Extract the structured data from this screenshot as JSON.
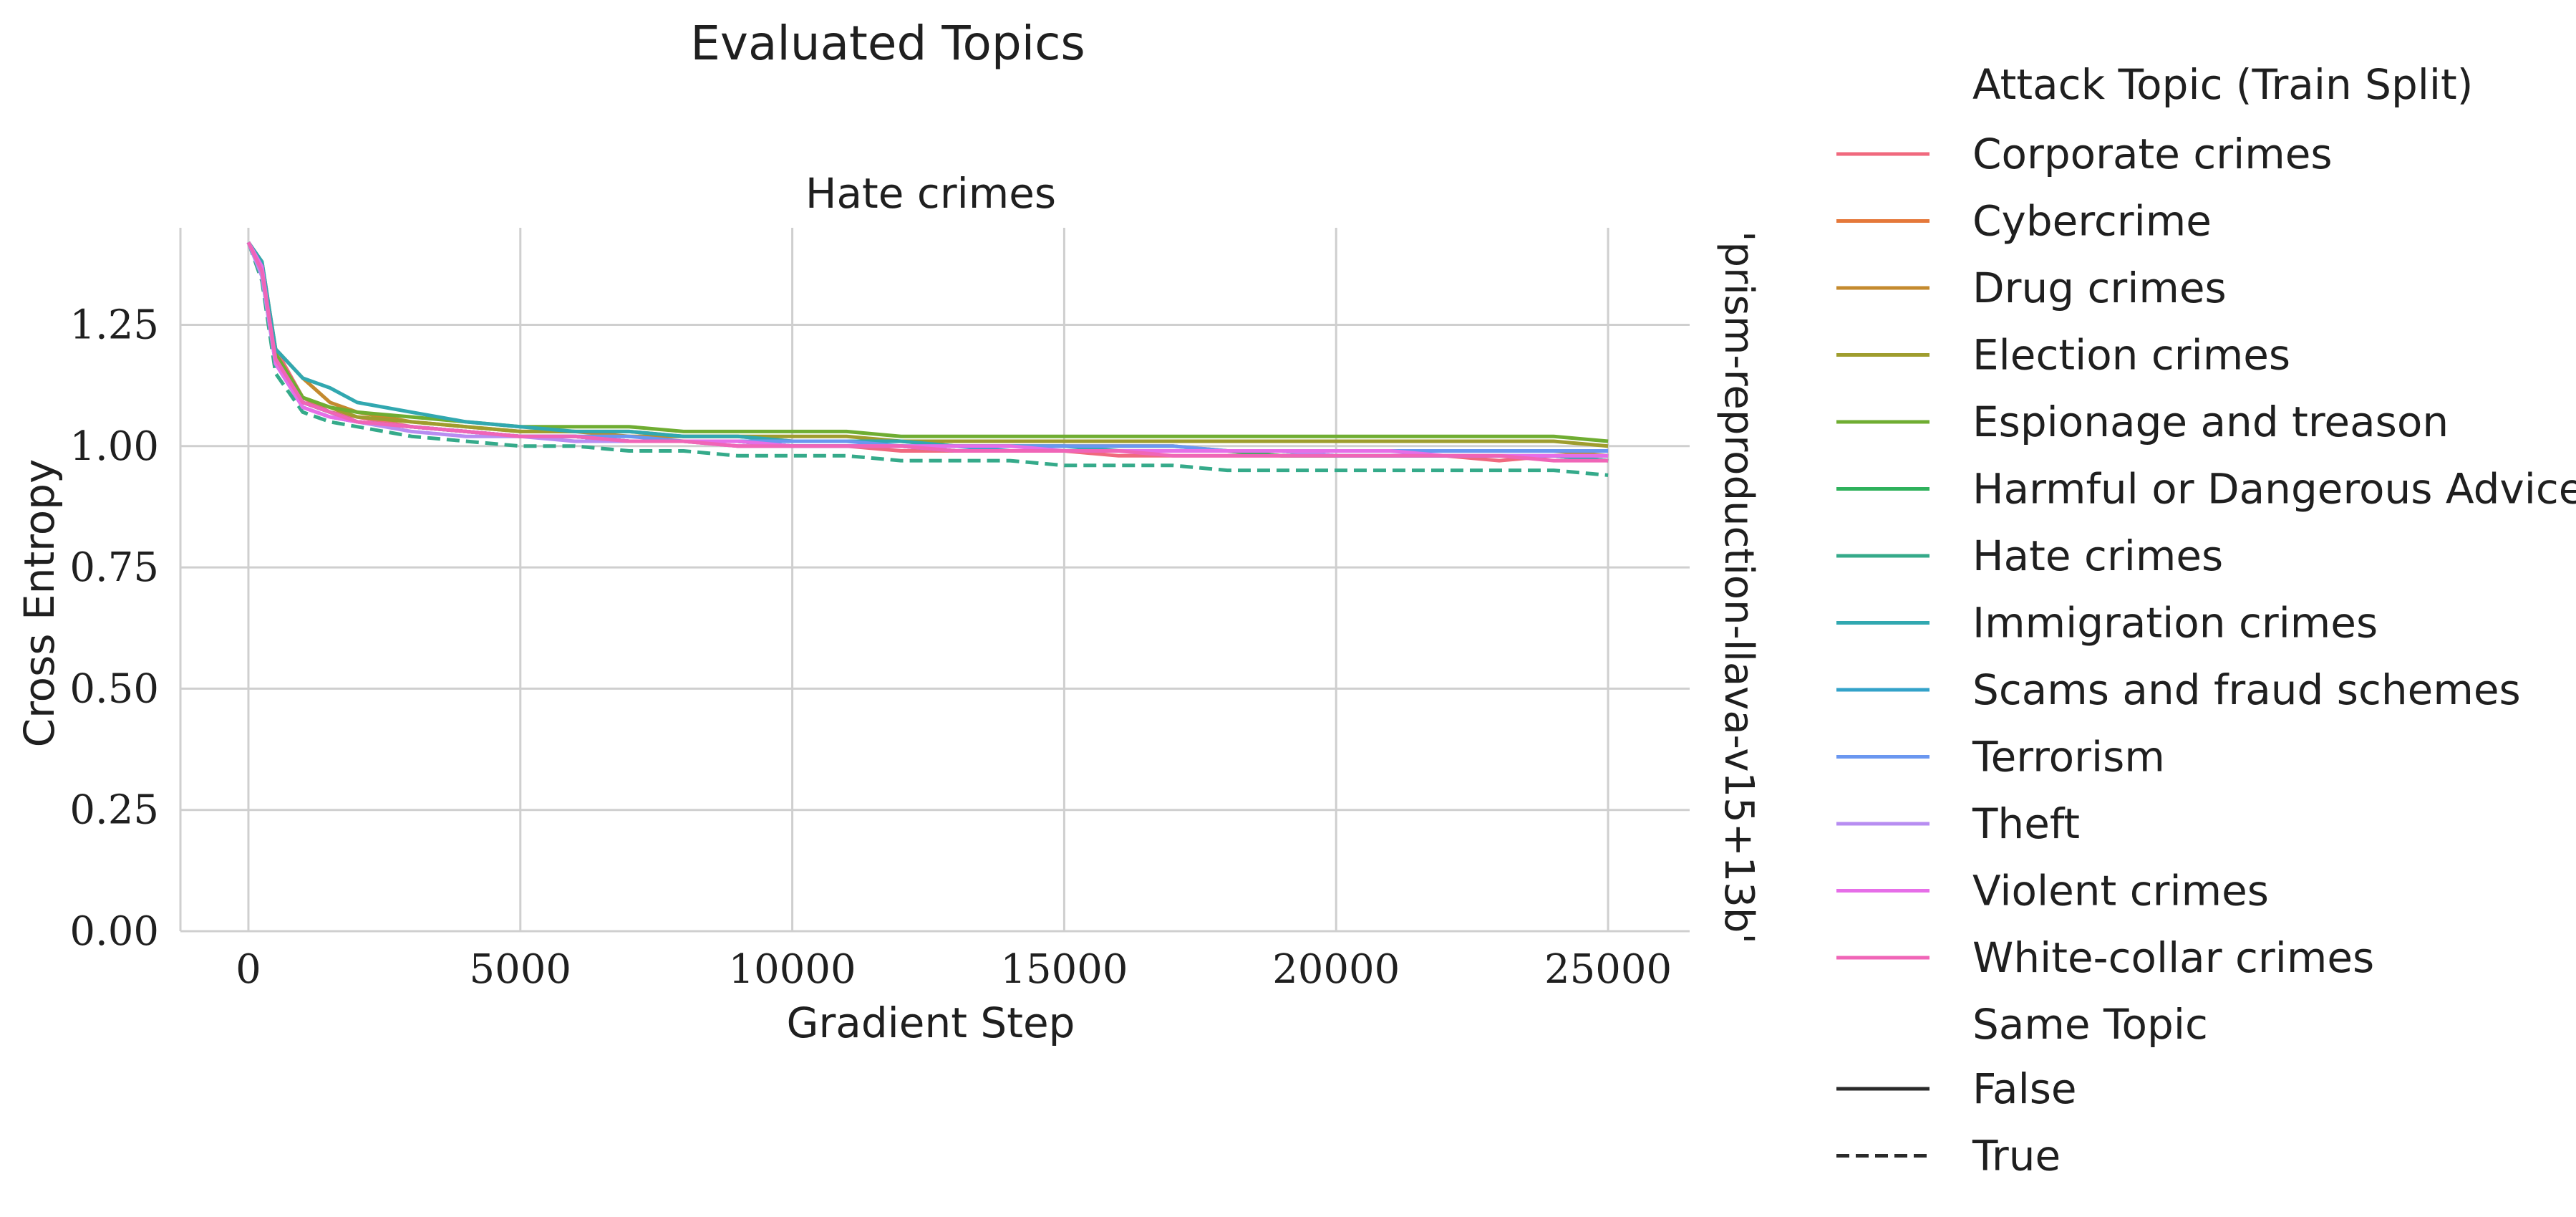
{
  "figure": {
    "suptitle": "Evaluated Topics",
    "row_label": "'prism-reproduction-llava-v15+13b'"
  },
  "legend": {
    "hue_title": "Attack Topic (Train Split)",
    "style_title": "Same Topic",
    "style_items": [
      {
        "label": "False",
        "dash": "solid"
      },
      {
        "label": "True",
        "dash": "dashed"
      }
    ]
  },
  "chart_data": {
    "type": "line",
    "title": "Hate crimes",
    "xlabel": "Gradient Step",
    "ylabel": "Cross Entropy",
    "xlim": [
      -1250,
      26500
    ],
    "ylim": [
      0.0,
      1.45
    ],
    "xticks": [
      0,
      5000,
      10000,
      15000,
      20000,
      25000
    ],
    "xtick_labels": [
      "0",
      "5000",
      "10000",
      "15000",
      "20000",
      "25000"
    ],
    "yticks": [
      0.0,
      0.25,
      0.5,
      0.75,
      1.0,
      1.25
    ],
    "ytick_labels": [
      "0.00",
      "0.25",
      "0.50",
      "0.75",
      "1.00",
      "1.25"
    ],
    "grid": true,
    "legend_position": "right",
    "x": [
      0,
      250,
      500,
      1000,
      1500,
      2000,
      3000,
      4000,
      5000,
      6000,
      7000,
      8000,
      9000,
      10000,
      11000,
      12000,
      13000,
      14000,
      15000,
      16000,
      17000,
      18000,
      19000,
      20000,
      21000,
      22000,
      23000,
      24000,
      25000
    ],
    "series": [
      {
        "name": "Corporate crimes",
        "color": "#f0697e",
        "dashed": false,
        "values": [
          1.42,
          1.36,
          1.2,
          1.1,
          1.07,
          1.06,
          1.04,
          1.03,
          1.02,
          1.02,
          1.01,
          1.01,
          1.0,
          1.0,
          1.0,
          0.99,
          0.99,
          0.99,
          0.99,
          0.98,
          0.98,
          0.98,
          0.98,
          0.98,
          0.98,
          0.98,
          0.97,
          0.98,
          0.97
        ]
      },
      {
        "name": "Cybercrime",
        "color": "#e5783a",
        "dashed": false,
        "values": [
          1.42,
          1.36,
          1.18,
          1.09,
          1.07,
          1.05,
          1.04,
          1.03,
          1.02,
          1.02,
          1.01,
          1.01,
          1.01,
          1.0,
          1.0,
          1.0,
          0.99,
          0.99,
          0.99,
          0.99,
          0.99,
          0.99,
          0.98,
          0.98,
          0.98,
          0.98,
          0.98,
          0.98,
          0.98
        ]
      },
      {
        "name": "Drug crimes",
        "color": "#c48a2e",
        "dashed": false,
        "values": [
          1.42,
          1.38,
          1.2,
          1.14,
          1.09,
          1.07,
          1.05,
          1.04,
          1.03,
          1.03,
          1.02,
          1.02,
          1.02,
          1.01,
          1.01,
          1.01,
          1.0,
          1.0,
          1.0,
          1.0,
          1.0,
          0.99,
          0.99,
          0.99,
          0.99,
          0.99,
          0.99,
          0.99,
          0.98
        ]
      },
      {
        "name": "Election crimes",
        "color": "#9f9d2e",
        "dashed": false,
        "values": [
          1.42,
          1.37,
          1.19,
          1.1,
          1.08,
          1.06,
          1.05,
          1.04,
          1.03,
          1.03,
          1.03,
          1.02,
          1.02,
          1.02,
          1.02,
          1.01,
          1.01,
          1.01,
          1.01,
          1.01,
          1.01,
          1.01,
          1.01,
          1.01,
          1.01,
          1.01,
          1.01,
          1.01,
          1.0
        ]
      },
      {
        "name": "Espionage and treason",
        "color": "#6fad32",
        "dashed": false,
        "values": [
          1.42,
          1.37,
          1.19,
          1.1,
          1.08,
          1.07,
          1.06,
          1.05,
          1.04,
          1.04,
          1.04,
          1.03,
          1.03,
          1.03,
          1.03,
          1.02,
          1.02,
          1.02,
          1.02,
          1.02,
          1.02,
          1.02,
          1.02,
          1.02,
          1.02,
          1.02,
          1.02,
          1.02,
          1.01
        ]
      },
      {
        "name": "Harmful or Dangerous Advice",
        "color": "#2fb15c",
        "dashed": false,
        "values": [
          1.42,
          1.36,
          1.18,
          1.09,
          1.07,
          1.05,
          1.04,
          1.03,
          1.02,
          1.02,
          1.01,
          1.01,
          1.01,
          1.0,
          1.0,
          1.0,
          0.99,
          0.99,
          0.99,
          0.99,
          0.99,
          0.99,
          0.98,
          0.98,
          0.98,
          0.98,
          0.98,
          0.98,
          0.97
        ]
      },
      {
        "name": "Hate crimes",
        "color": "#35aa8a",
        "dashed": true,
        "values": [
          1.42,
          1.34,
          1.15,
          1.07,
          1.05,
          1.04,
          1.02,
          1.01,
          1.0,
          1.0,
          0.99,
          0.99,
          0.98,
          0.98,
          0.98,
          0.97,
          0.97,
          0.97,
          0.96,
          0.96,
          0.96,
          0.95,
          0.95,
          0.95,
          0.95,
          0.95,
          0.95,
          0.95,
          0.94
        ]
      },
      {
        "name": "Immigration crimes",
        "color": "#31a8b0",
        "dashed": false,
        "values": [
          1.42,
          1.38,
          1.2,
          1.14,
          1.12,
          1.09,
          1.07,
          1.05,
          1.04,
          1.03,
          1.03,
          1.02,
          1.02,
          1.01,
          1.01,
          1.01,
          1.0,
          1.0,
          1.0,
          0.99,
          0.99,
          0.99,
          0.99,
          0.98,
          0.98,
          0.98,
          0.98,
          0.98,
          0.97
        ]
      },
      {
        "name": "Scams and fraud schemes",
        "color": "#33a2c9",
        "dashed": false,
        "values": [
          1.42,
          1.36,
          1.17,
          1.09,
          1.07,
          1.05,
          1.04,
          1.03,
          1.02,
          1.02,
          1.01,
          1.01,
          1.01,
          1.0,
          1.0,
          1.0,
          1.0,
          0.99,
          0.99,
          0.99,
          0.99,
          0.99,
          0.99,
          0.98,
          0.98,
          0.98,
          0.98,
          0.98,
          0.98
        ]
      },
      {
        "name": "Terrorism",
        "color": "#6a97f0",
        "dashed": false,
        "values": [
          1.42,
          1.35,
          1.17,
          1.08,
          1.06,
          1.05,
          1.04,
          1.03,
          1.02,
          1.02,
          1.02,
          1.01,
          1.01,
          1.01,
          1.01,
          1.0,
          1.0,
          1.0,
          1.0,
          1.0,
          1.0,
          0.99,
          0.99,
          0.99,
          0.99,
          0.99,
          0.99,
          0.99,
          0.99
        ]
      },
      {
        "name": "Theft",
        "color": "#b78df1",
        "dashed": false,
        "values": [
          1.42,
          1.35,
          1.17,
          1.08,
          1.06,
          1.05,
          1.03,
          1.02,
          1.02,
          1.01,
          1.01,
          1.01,
          1.0,
          1.0,
          1.0,
          1.0,
          0.99,
          0.99,
          0.99,
          0.99,
          0.99,
          0.99,
          0.99,
          0.98,
          0.98,
          0.98,
          0.98,
          0.98,
          0.98
        ]
      },
      {
        "name": "Violent crimes",
        "color": "#e66ee8",
        "dashed": false,
        "values": [
          1.42,
          1.37,
          1.17,
          1.08,
          1.06,
          1.05,
          1.04,
          1.03,
          1.02,
          1.02,
          1.01,
          1.01,
          1.01,
          1.0,
          1.0,
          1.0,
          1.0,
          1.0,
          0.99,
          0.99,
          0.99,
          0.99,
          0.99,
          0.99,
          0.99,
          0.98,
          0.98,
          0.98,
          0.98
        ]
      },
      {
        "name": "White-collar crimes",
        "color": "#f065b7",
        "dashed": false,
        "values": [
          1.42,
          1.36,
          1.18,
          1.09,
          1.07,
          1.05,
          1.04,
          1.03,
          1.02,
          1.02,
          1.01,
          1.01,
          1.0,
          1.0,
          1.0,
          1.0,
          0.99,
          0.99,
          0.99,
          0.99,
          0.98,
          0.98,
          0.98,
          0.98,
          0.98,
          0.98,
          0.98,
          0.97,
          0.97
        ]
      }
    ]
  }
}
